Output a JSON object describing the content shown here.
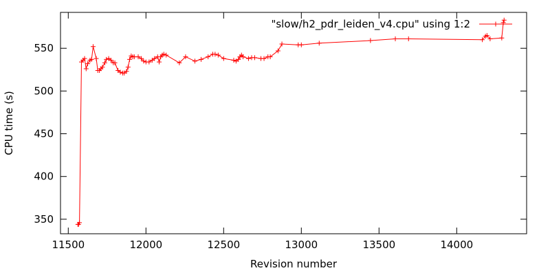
{
  "chart_data": {
    "type": "line",
    "xlabel": "Revision number",
    "ylabel": "CPU time (s)",
    "xlim": [
      11450,
      14450
    ],
    "ylim": [
      333,
      592
    ],
    "xticks": [
      11500,
      12000,
      12500,
      13000,
      13500,
      14000
    ],
    "yticks": [
      350,
      400,
      450,
      500,
      550
    ],
    "grid": false,
    "legend_position": "top-right",
    "series": [
      {
        "name": "\"slow/h2_pdr_leiden_v4.cpu\" using 1:2",
        "color": "#ff0000",
        "marker": "plus",
        "points": [
          [
            11562,
            344
          ],
          [
            11566,
            344
          ],
          [
            11572,
            346
          ],
          [
            11585,
            534
          ],
          [
            11595,
            536
          ],
          [
            11605,
            538
          ],
          [
            11615,
            526
          ],
          [
            11625,
            532
          ],
          [
            11640,
            536
          ],
          [
            11650,
            537
          ],
          [
            11660,
            552
          ],
          [
            11680,
            538
          ],
          [
            11690,
            524
          ],
          [
            11700,
            524
          ],
          [
            11710,
            526
          ],
          [
            11720,
            528
          ],
          [
            11735,
            533
          ],
          [
            11745,
            537
          ],
          [
            11760,
            538
          ],
          [
            11775,
            536
          ],
          [
            11790,
            533
          ],
          [
            11800,
            533
          ],
          [
            11820,
            524
          ],
          [
            11835,
            522
          ],
          [
            11850,
            521
          ],
          [
            11860,
            521
          ],
          [
            11875,
            523
          ],
          [
            11885,
            528
          ],
          [
            11895,
            537
          ],
          [
            11905,
            541
          ],
          [
            11915,
            540
          ],
          [
            11925,
            540
          ],
          [
            11950,
            540
          ],
          [
            11970,
            538
          ],
          [
            11985,
            535
          ],
          [
            12000,
            534
          ],
          [
            12020,
            534
          ],
          [
            12040,
            536
          ],
          [
            12055,
            538
          ],
          [
            12075,
            540
          ],
          [
            12085,
            534
          ],
          [
            12095,
            540
          ],
          [
            12105,
            542
          ],
          [
            12115,
            543
          ],
          [
            12130,
            542
          ],
          [
            12215,
            533
          ],
          [
            12255,
            540
          ],
          [
            12315,
            535
          ],
          [
            12355,
            537
          ],
          [
            12400,
            540
          ],
          [
            12430,
            543
          ],
          [
            12445,
            543
          ],
          [
            12465,
            542
          ],
          [
            12500,
            538
          ],
          [
            12565,
            536
          ],
          [
            12580,
            535
          ],
          [
            12595,
            537
          ],
          [
            12605,
            540
          ],
          [
            12615,
            542
          ],
          [
            12625,
            540
          ],
          [
            12660,
            538
          ],
          [
            12680,
            539
          ],
          [
            12700,
            539
          ],
          [
            12740,
            538
          ],
          [
            12760,
            538
          ],
          [
            12785,
            540
          ],
          [
            12800,
            540
          ],
          [
            12850,
            547
          ],
          [
            12875,
            555
          ],
          [
            12980,
            554
          ],
          [
            13000,
            554
          ],
          [
            13115,
            556
          ],
          [
            13445,
            559
          ],
          [
            13605,
            561
          ],
          [
            13690,
            561
          ],
          [
            14165,
            560
          ],
          [
            14185,
            564
          ],
          [
            14195,
            565
          ],
          [
            14215,
            561
          ],
          [
            14290,
            562
          ],
          [
            14300,
            580
          ],
          [
            14305,
            583
          ]
        ]
      }
    ]
  }
}
